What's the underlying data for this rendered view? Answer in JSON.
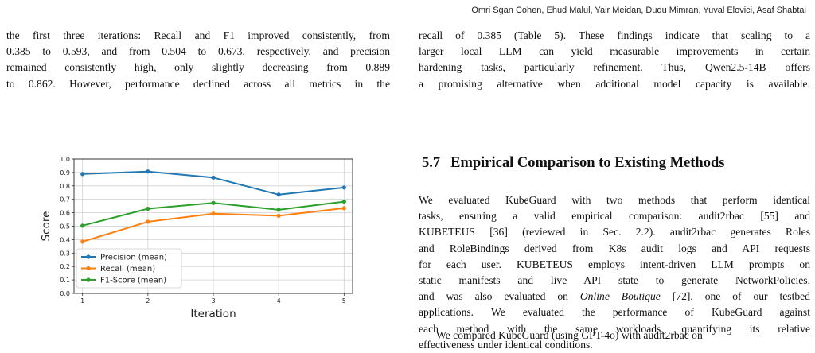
{
  "header": {
    "authors": "Omri Sgan Cohen, Ehud Malul, Yair Meidan, Dudu Mimran, Yuval Elovici, Asaf Shabtai"
  },
  "left_paragraph": {
    "lines": [
      "the first three iterations: Recall and F1 improved consistently, from",
      "0.385 to 0.593, and from 0.504 to 0.673, respectively, and precision",
      "remained consistently high, only slightly decreasing from 0.889",
      "to 0.862. However, performance declined across all metrics in the"
    ]
  },
  "right_paragraph_top": {
    "lines": [
      "recall of 0.385 (Table 5). These findings indicate that scaling to a",
      "larger local LLM can yield measurable improvements in certain",
      "hardening tasks, particularly refinement. Thus, Qwen2.5-14B offers",
      "a promising alternative when additional model capacity is available."
    ]
  },
  "section": {
    "number": "5.7",
    "title": "Empirical Comparison to Existing Methods"
  },
  "right_paragraph_body": {
    "lines": [
      "We evaluated KubeGuard with two methods that perform identical",
      "tasks, ensuring a valid empirical comparison: audit2rbac [55] and",
      "KUBETEUS [36] (reviewed in Sec. 2.2). audit2rbac generates Roles",
      "and RoleBindings derived from K8s audit logs and API requests",
      "for each user. KUBETEUS employs intent-driven LLM prompts on",
      "static manifests and live API state to generate NetworkPolicies,",
      "and was also evaluated on ",
      "Online Boutique",
      " [72], one of our testbed",
      "applications. We evaluated the performance of KubeGuard against",
      "each method with the same workloads, quantifying its relative",
      "effectiveness under identical conditions."
    ],
    "last_line": "We compared KubeGuard (using GPT-4o) with audit2rbac on"
  },
  "chart_data": {
    "type": "line",
    "x": [
      1,
      2,
      3,
      4,
      5
    ],
    "xlabel": "Iteration",
    "ylabel": "Score",
    "ylim": [
      0.0,
      1.0
    ],
    "yticks": [
      "0.0",
      "0.1",
      "0.2",
      "0.3",
      "0.4",
      "0.5",
      "0.6",
      "0.7",
      "0.8",
      "0.9",
      "1.0"
    ],
    "xticks": [
      "1",
      "2",
      "3",
      "4",
      "5"
    ],
    "grid": true,
    "legend_position": "lower-left",
    "series": [
      {
        "name": "Precision (mean)",
        "color": "#1f77b4",
        "values": [
          0.889,
          0.907,
          0.862,
          0.735,
          0.788
        ]
      },
      {
        "name": "Recall (mean)",
        "color": "#ff7f0e",
        "values": [
          0.385,
          0.533,
          0.593,
          0.578,
          0.634
        ]
      },
      {
        "name": "F1-Score (mean)",
        "color": "#2ca02c",
        "values": [
          0.504,
          0.63,
          0.673,
          0.622,
          0.683
        ]
      }
    ]
  }
}
